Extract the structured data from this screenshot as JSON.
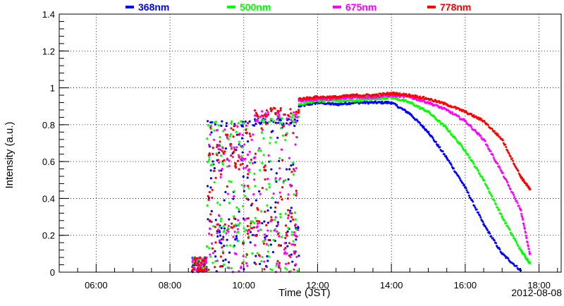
{
  "chart_data": {
    "type": "scatter",
    "title": "",
    "xlabel": "Time (JST)",
    "ylabel": "Intensity (a.u.)",
    "date_label": "2012-08-08",
    "xlim_hours": [
      5.0,
      18.6
    ],
    "ylim": [
      0,
      1.4
    ],
    "x_ticks": [
      "06:00",
      "08:00",
      "10:00",
      "12:00",
      "14:00",
      "16:00",
      "18:00"
    ],
    "x_tick_hours": [
      6,
      8,
      10,
      12,
      14,
      16,
      18
    ],
    "y_ticks": [
      "0",
      "0.2",
      "0.4",
      "0.6",
      "0.8",
      "1",
      "1.2",
      "1.4"
    ],
    "y_tick_values": [
      0,
      0.2,
      0.4,
      0.6,
      0.8,
      1.0,
      1.2,
      1.4
    ],
    "grid": true,
    "legend_position": "top",
    "series": [
      {
        "name": "368nm",
        "color": "#0000ff",
        "x": [
          "11:30",
          "12:00",
          "12:30",
          "13:00",
          "13:30",
          "14:00",
          "14:30",
          "15:00",
          "15:30",
          "16:00",
          "16:30",
          "17:00",
          "17:30"
        ],
        "y": [
          0.9,
          0.92,
          0.91,
          0.92,
          0.92,
          0.92,
          0.86,
          0.76,
          0.62,
          0.46,
          0.26,
          0.1,
          0.01
        ]
      },
      {
        "name": "500nm",
        "color": "#00ff00",
        "x": [
          "11:30",
          "12:00",
          "12:30",
          "13:00",
          "13:30",
          "14:00",
          "14:30",
          "15:00",
          "15:30",
          "16:00",
          "16:30",
          "17:00",
          "17:30",
          "17:45"
        ],
        "y": [
          0.91,
          0.93,
          0.93,
          0.93,
          0.94,
          0.95,
          0.92,
          0.87,
          0.78,
          0.66,
          0.5,
          0.3,
          0.12,
          0.05
        ]
      },
      {
        "name": "675nm",
        "color": "#ff00ff",
        "x": [
          "11:30",
          "12:00",
          "12:30",
          "13:00",
          "13:30",
          "14:00",
          "14:30",
          "15:00",
          "15:30",
          "16:00",
          "16:30",
          "17:00",
          "17:30",
          "17:45"
        ],
        "y": [
          0.93,
          0.94,
          0.94,
          0.95,
          0.95,
          0.96,
          0.95,
          0.92,
          0.88,
          0.82,
          0.72,
          0.54,
          0.34,
          0.1
        ]
      },
      {
        "name": "778nm",
        "color": "#ff0000",
        "x": [
          "11:30",
          "12:00",
          "12:30",
          "13:00",
          "13:30",
          "14:00",
          "14:30",
          "15:00",
          "15:30",
          "16:00",
          "16:30",
          "17:00",
          "17:30",
          "17:45"
        ],
        "y": [
          0.94,
          0.95,
          0.95,
          0.96,
          0.96,
          0.97,
          0.96,
          0.94,
          0.91,
          0.87,
          0.82,
          0.72,
          0.52,
          0.45
        ]
      }
    ]
  }
}
